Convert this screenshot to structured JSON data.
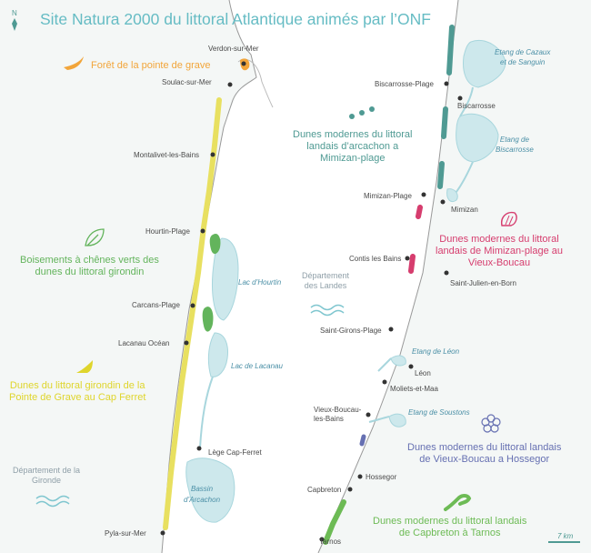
{
  "title": "Site Natura 2000 du littoral Atlantique animés par l’ONF",
  "north_label": "N",
  "scale_label": "7 km",
  "towns": {
    "verdon": "Verdon-sur-Mer",
    "soulac": "Soulac-sur-Mer",
    "montalivet": "Montalivet-les-Bains",
    "hourtin": "Hourtin-Plage",
    "carcans": "Carcans-Plage",
    "lacanau_ocean": "Lacanau Océan",
    "lege": "Lège Cap-Ferret",
    "pyla": "Pyla-sur-Mer",
    "biscarrosse_plage": "Biscarrosse-Plage",
    "biscarrosse": "Biscarrosse",
    "mimizan_plage": "Mimizan-Plage",
    "mimizan": "Mimizan",
    "contis": "Contis les Bains",
    "saint_julien": "Saint-Julien-en-Born",
    "saint_girons": "Saint-Girons-Plage",
    "leon": "Léon",
    "moliets": "Moliets-et-Maa",
    "vieux_boucau": "Vieux-Boucau-\nles-Bains",
    "hossegor": "Hossegor",
    "capbreton": "Capbreton",
    "tarnos": "Tarnos"
  },
  "lakes": {
    "hourtin": "Lac d’Hourtin",
    "lacanau": "Lac de Lacanau",
    "arcachon": "Bassin\nd’Arcachon",
    "cazaux": "Etang de Cazaux\net de Sanguin",
    "biscarrosse": "Etang de\nBiscarrosse",
    "leon": "Etang de Léon",
    "soustons": "Etang de Soustons"
  },
  "departments": {
    "gironde": "Département de la\nGironde",
    "landes": "Département\ndes Landes"
  },
  "sites": [
    {
      "id": "pointe-de-grave",
      "label": "Forêt de la pointe de grave",
      "color": "#f2a53a",
      "icon": "bird-icon"
    },
    {
      "id": "chenes-verts",
      "label": "Boisements à chênes verts des\ndunes du littoral girondin",
      "color": "#63b45c",
      "icon": "leaf-icon"
    },
    {
      "id": "littoral-girondin",
      "label": "Dunes du littoral girondin de la\nPointe de Grave au Cap Ferret",
      "color": "#dfd52c",
      "icon": "sail-icon"
    },
    {
      "id": "arcachon-mimizan",
      "label": "Dunes modernes du littoral\nlandais d’arcachon a\nMimizan-plage",
      "color": "#4f9a93",
      "icon": "frog-tracks-icon"
    },
    {
      "id": "mimizan-vieux-boucau",
      "label": "Dunes modernes du littoral\nlandais de Mimizan-plage au\nVieux-Boucau",
      "color": "#d63d6e",
      "icon": "shell-icon"
    },
    {
      "id": "vieux-boucau-hossegor",
      "label": "Dunes modernes du littoral landais\nde Vieux-Boucau a Hossegor",
      "color": "#6670b2",
      "icon": "flower-icon"
    },
    {
      "id": "capbreton-tarnos",
      "label": "Dunes modernes du littoral landais\nde Capbreton à Tarnos",
      "color": "#6dbb55",
      "icon": "lizard-icon"
    }
  ]
}
